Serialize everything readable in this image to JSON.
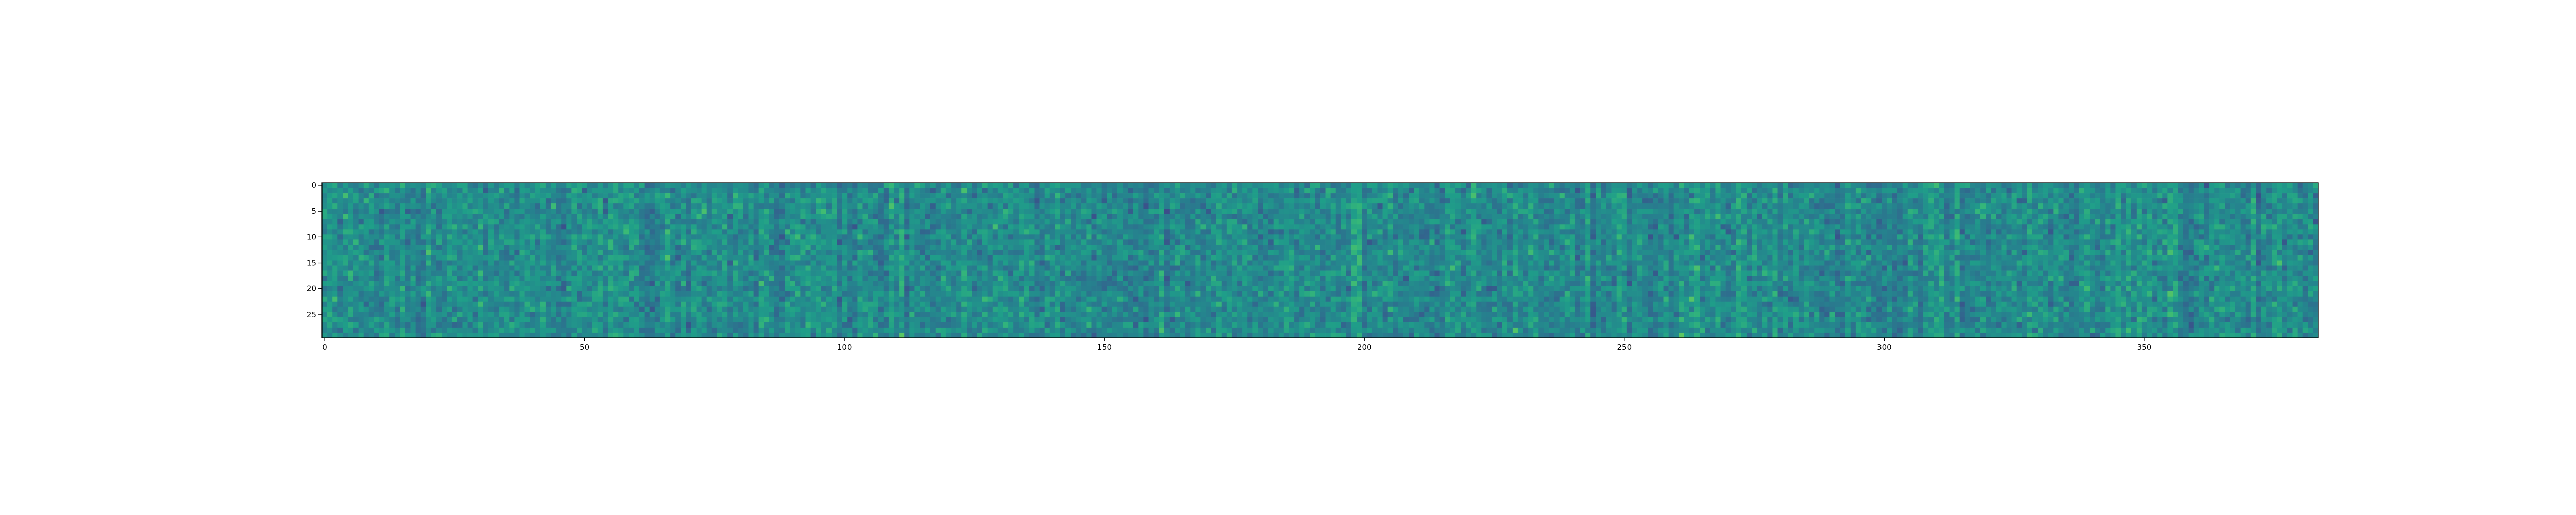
{
  "chart_data": {
    "type": "heatmap",
    "title": "",
    "xlabel": "",
    "ylabel": "",
    "rows": 30,
    "cols": 384,
    "xlim": [
      -0.5,
      383.5
    ],
    "ylim": [
      29.5,
      -0.5
    ],
    "x_ticks": [
      0,
      50,
      100,
      150,
      200,
      250,
      300,
      350
    ],
    "x_tick_labels": [
      "0",
      "50",
      "100",
      "150",
      "200",
      "250",
      "300",
      "350"
    ],
    "y_ticks": [
      0,
      5,
      10,
      15,
      20,
      25
    ],
    "y_tick_labels": [
      "0",
      "5",
      "10",
      "15",
      "20",
      "25"
    ],
    "colormap": "viridis",
    "value_range": [
      0,
      1
    ],
    "grid": false,
    "colors": {
      "viridis_stops": [
        "#440154",
        "#482878",
        "#3e4989",
        "#31688e",
        "#26828e",
        "#1f9e89",
        "#35b779",
        "#6ece58",
        "#b5de2b",
        "#fde725"
      ],
      "axis": "#000000",
      "background": "#ffffff"
    },
    "note_values": "Cell values are random noise centred near the middle of the colormap; individual values are generated procedurally by the drawing script (seeded)."
  }
}
